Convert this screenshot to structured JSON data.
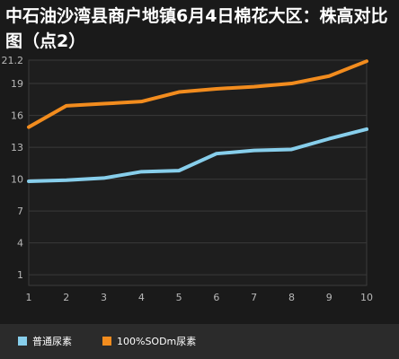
{
  "chart_data": {
    "type": "line",
    "title": "中石油沙湾县商户地镇6月4日棉花大区：株高对比图（点2）",
    "x": [
      1,
      2,
      3,
      4,
      5,
      6,
      7,
      8,
      9,
      10
    ],
    "y_ticks": [
      1,
      4,
      7,
      10,
      13,
      16,
      19,
      21.2
    ],
    "ylim": [
      0,
      21.2
    ],
    "grid": true,
    "legend_position": "bottom",
    "series": [
      {
        "name": "普通尿素",
        "color": "#87ceeb",
        "values": [
          9.8,
          9.9,
          10.1,
          10.7,
          10.8,
          12.4,
          12.7,
          12.8,
          13.8,
          14.7
        ]
      },
      {
        "name": "100%SODm尿素",
        "color": "#f28c1e",
        "values": [
          14.9,
          16.9,
          17.1,
          17.3,
          18.2,
          18.5,
          18.7,
          19.0,
          19.7,
          21.1
        ]
      }
    ]
  }
}
